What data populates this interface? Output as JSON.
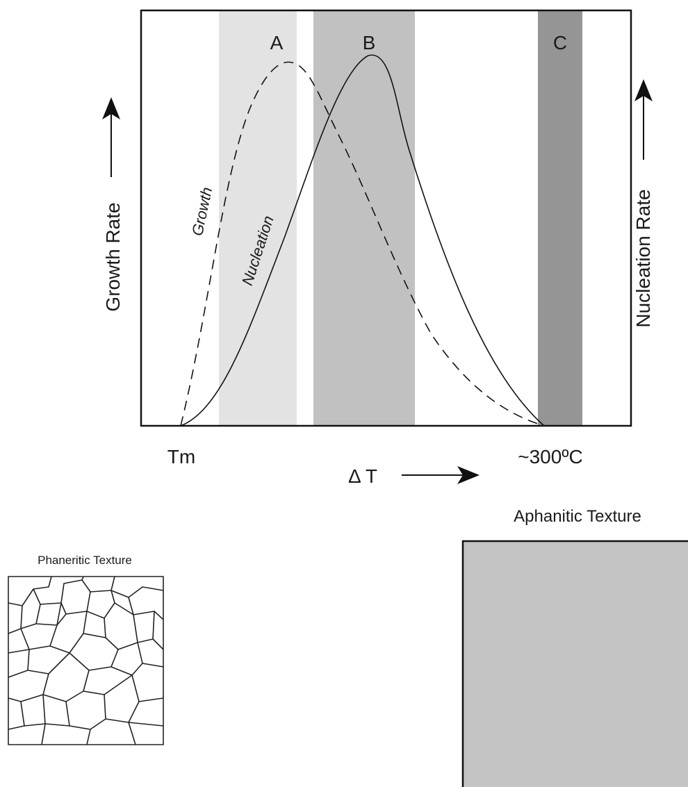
{
  "diagram": {
    "axis_left_label": "Growth Rate",
    "axis_right_label": "Nucleation Rate",
    "x_start_label": "Tm",
    "x_end_label": "~300ºC",
    "x_axis_label": "Δ T",
    "curve_growth_label": "Growth",
    "curve_nucleation_label": "Nucleation",
    "zones": [
      {
        "label": "A",
        "color": "#e3e3e3"
      },
      {
        "label": "B",
        "color": "#c1c1c1"
      },
      {
        "label": "C",
        "color": "#959595"
      }
    ]
  },
  "phaneritic": {
    "title": "Phaneritic Texture"
  },
  "aphanitic": {
    "title": "Aphanitic Texture",
    "fill": "#c4c4c4"
  }
}
